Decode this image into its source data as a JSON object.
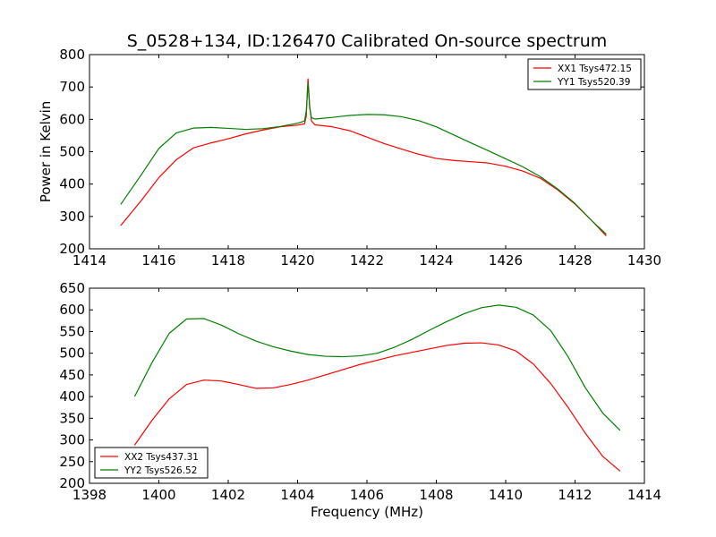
{
  "title": "S_0528+134, ID:126470 Calibrated On-source spectrum",
  "chart_data": [
    {
      "type": "line",
      "xlabel": "",
      "ylabel": "Power in Kelvin",
      "xlim": [
        1414,
        1430
      ],
      "ylim": [
        200,
        800
      ],
      "xticks": [
        "1414",
        "1416",
        "1418",
        "1420",
        "1422",
        "1424",
        "1426",
        "1428",
        "1430"
      ],
      "yticks": [
        "200",
        "300",
        "400",
        "500",
        "600",
        "700",
        "800"
      ],
      "legend_position": "top-right",
      "series": [
        {
          "name": "XX1 Tsys472.15",
          "color": "#ff0000",
          "x": [
            1414.9,
            1415.5,
            1416.0,
            1416.5,
            1417.0,
            1417.5,
            1418.0,
            1418.5,
            1419.0,
            1419.5,
            1420.0,
            1420.2,
            1420.25,
            1420.3,
            1420.35,
            1420.4,
            1420.5,
            1421.0,
            1421.5,
            1422.0,
            1422.5,
            1423.0,
            1423.5,
            1424.0,
            1424.5,
            1425.0,
            1425.5,
            1426.0,
            1426.5,
            1427.0,
            1427.5,
            1428.0,
            1428.5,
            1428.9
          ],
          "y": [
            272,
            350,
            420,
            475,
            512,
            527,
            540,
            555,
            567,
            577,
            582,
            586,
            610,
            725,
            640,
            595,
            583,
            577,
            565,
            545,
            525,
            508,
            492,
            479,
            473,
            469,
            465,
            455,
            440,
            418,
            382,
            338,
            285,
            240
          ]
        },
        {
          "name": "YY1 Tsys520.39",
          "color": "#008000",
          "x": [
            1414.9,
            1415.5,
            1416.0,
            1416.5,
            1417.0,
            1417.5,
            1418.0,
            1418.5,
            1419.0,
            1419.5,
            1420.0,
            1420.2,
            1420.25,
            1420.3,
            1420.35,
            1420.4,
            1420.5,
            1421.0,
            1421.5,
            1422.0,
            1422.5,
            1423.0,
            1423.5,
            1424.0,
            1424.5,
            1425.0,
            1425.5,
            1426.0,
            1426.5,
            1427.0,
            1427.5,
            1428.0,
            1428.5,
            1428.9
          ],
          "y": [
            337,
            430,
            510,
            558,
            573,
            575,
            572,
            569,
            571,
            578,
            588,
            595,
            625,
            712,
            635,
            605,
            601,
            606,
            612,
            615,
            614,
            608,
            596,
            577,
            552,
            527,
            503,
            478,
            453,
            423,
            385,
            340,
            285,
            245
          ]
        }
      ]
    },
    {
      "type": "line",
      "xlabel": "Frequency (MHz)",
      "ylabel": "",
      "xlim": [
        1398,
        1414
      ],
      "ylim": [
        200,
        650
      ],
      "xticks": [
        "1398",
        "1400",
        "1402",
        "1404",
        "1406",
        "1408",
        "1410",
        "1412",
        "1414"
      ],
      "yticks": [
        "200",
        "250",
        "300",
        "350",
        "400",
        "450",
        "500",
        "550",
        "600",
        "650"
      ],
      "legend_position": "bottom-left",
      "series": [
        {
          "name": "XX2 Tsys437.31",
          "color": "#ff0000",
          "x": [
            1399.3,
            1399.8,
            1400.3,
            1400.8,
            1401.3,
            1401.8,
            1402.3,
            1402.8,
            1403.3,
            1403.8,
            1404.3,
            1404.8,
            1405.3,
            1405.8,
            1406.3,
            1406.8,
            1407.3,
            1407.8,
            1408.3,
            1408.8,
            1409.3,
            1409.8,
            1410.3,
            1410.8,
            1411.3,
            1411.8,
            1412.3,
            1412.8,
            1413.3
          ],
          "y": [
            288,
            345,
            395,
            428,
            438,
            436,
            428,
            419,
            420,
            428,
            438,
            450,
            462,
            474,
            484,
            494,
            502,
            510,
            518,
            523,
            524,
            519,
            505,
            475,
            430,
            375,
            315,
            262,
            228
          ]
        },
        {
          "name": "YY2 Tsys526.52",
          "color": "#008000",
          "x": [
            1399.3,
            1399.8,
            1400.3,
            1400.8,
            1401.3,
            1401.8,
            1402.3,
            1402.8,
            1403.3,
            1403.8,
            1404.3,
            1404.8,
            1405.3,
            1405.8,
            1406.3,
            1406.8,
            1407.3,
            1407.8,
            1408.3,
            1408.8,
            1409.3,
            1409.8,
            1410.3,
            1410.8,
            1411.3,
            1411.8,
            1412.3,
            1412.8,
            1413.3
          ],
          "y": [
            400,
            478,
            546,
            579,
            580,
            565,
            545,
            528,
            515,
            505,
            497,
            493,
            492,
            494,
            500,
            514,
            532,
            553,
            573,
            591,
            605,
            611,
            606,
            588,
            552,
            492,
            420,
            362,
            322
          ]
        }
      ]
    }
  ]
}
